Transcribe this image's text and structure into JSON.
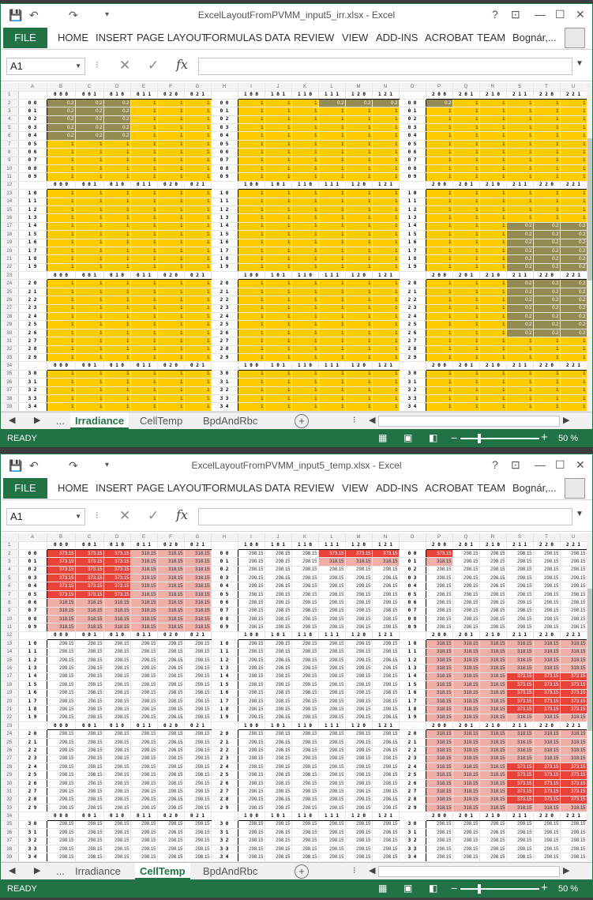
{
  "windows": [
    {
      "id": "irr",
      "title": "ExcelLayoutFromPVMM_input5_irr.xlsx - Excel",
      "active_sheet": "Irradiance",
      "mode": "irr",
      "last_row_label": "3 7"
    },
    {
      "id": "temp",
      "title": "ExcelLayoutFromPVMM_input5_temp.xlsx - Excel",
      "active_sheet": "CellTemp",
      "mode": "temp",
      "last_row_label": "3 8"
    }
  ],
  "quick_access": {
    "save": "💾",
    "undo": "↶",
    "redo": "↷",
    "customize": "▾"
  },
  "window_controls": {
    "help": "?",
    "restore_ribbon": "⊡",
    "minimize": "—",
    "maximize": "☐",
    "close": "✕"
  },
  "ribbon_tabs": [
    "FILE",
    "HOME",
    "INSERT",
    "PAGE LAYOUT",
    "FORMULAS",
    "DATA",
    "REVIEW",
    "VIEW",
    "ADD-INS",
    "ACROBAT",
    "TEAM"
  ],
  "user_name": "Bognár,...",
  "name_box": "A1",
  "fx_label": "fx",
  "sheet_tabs": [
    "...",
    "Irradiance",
    "CellTemp",
    "BpdAndRbc"
  ],
  "status": {
    "ready": "READY",
    "zoom": "50 %"
  },
  "columns": [
    "A",
    "B",
    "C",
    "D",
    "E",
    "F",
    "G",
    "H",
    "I",
    "J",
    "K",
    "L",
    "M",
    "N",
    "O",
    "P",
    "Q",
    "R",
    "S",
    "T",
    "U",
    "V"
  ],
  "header_labels": [
    "0 0 0",
    "0 0 1",
    "0 1 0",
    "0 1 1",
    "0 2 0",
    "0 2 1",
    "1 0 0",
    "1 0 1",
    "1 1 0",
    "1 1 1",
    "1 2 0",
    "1 2 1",
    "2 0 0",
    "2 0 1",
    "2 1 0",
    "2 1 1",
    "2 2 0",
    "2 2 1"
  ],
  "values": {
    "one": "1",
    "shaded": "0.2",
    "hot": "373.15",
    "warm": "318.15",
    "base": "298.15"
  },
  "colors": {
    "excel_green": "#217346",
    "yellow": "#ffcc00",
    "shaded": "#948a54",
    "hot": "#e8423a",
    "warm": "#efafa9"
  }
}
